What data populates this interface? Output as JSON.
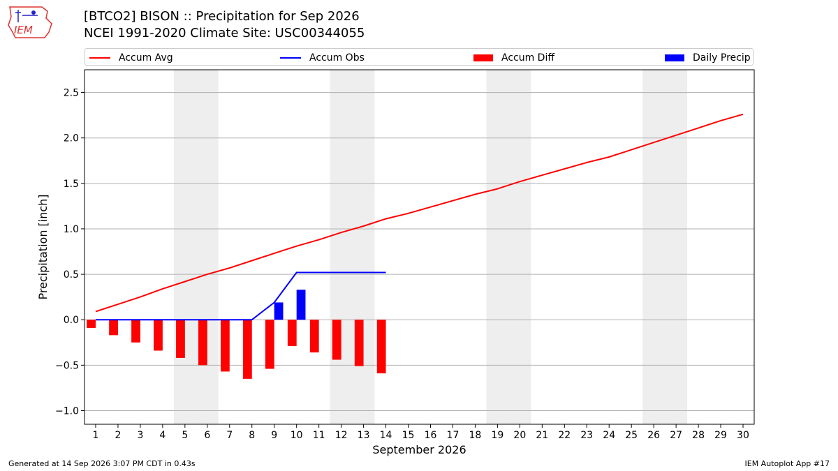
{
  "header": {
    "title_line1": "[BTCO2] BISON :: Precipitation for Sep 2026",
    "title_line2": "NCEI 1991-2020 Climate Site: USC00344055",
    "logo_text": "IEM"
  },
  "legend": {
    "items": [
      {
        "label": "Accum Avg",
        "color": "#ff0000",
        "kind": "line"
      },
      {
        "label": "Accum Obs",
        "color": "#0000ff",
        "kind": "line"
      },
      {
        "label": "Accum Diff",
        "color": "#ff0000",
        "kind": "box"
      },
      {
        "label": "Daily Precip",
        "color": "#0000ff",
        "kind": "box"
      }
    ]
  },
  "footer": {
    "generated": "Generated at 14 Sep 2026 3:07 PM CDT in 0.43s",
    "app": "IEM Autoplot App #17"
  },
  "chart_data": {
    "type": "bar",
    "xlabel": "September 2026",
    "ylabel": "Precipitation [inch]",
    "xlim": [
      0.5,
      30.5
    ],
    "ylim": [
      -1.15,
      2.75
    ],
    "yticks": [
      -1.0,
      -0.5,
      0.0,
      0.5,
      1.0,
      1.5,
      2.0,
      2.5
    ],
    "ytick_labels": [
      "−1.0",
      "−0.5",
      "0.0",
      "0.5",
      "1.0",
      "1.5",
      "2.0",
      "2.5"
    ],
    "xticks": [
      1,
      2,
      3,
      4,
      5,
      6,
      7,
      8,
      9,
      10,
      11,
      12,
      13,
      14,
      15,
      16,
      17,
      18,
      19,
      20,
      21,
      22,
      23,
      24,
      25,
      26,
      27,
      28,
      29,
      30
    ],
    "grid": "horizontal",
    "weekend_shading": [
      [
        4.5,
        6.5
      ],
      [
        11.5,
        13.5
      ],
      [
        18.5,
        20.5
      ],
      [
        25.5,
        27.5
      ]
    ],
    "colors": {
      "avg": "#ff0000",
      "obs": "#0000ff",
      "diff": "#ff0000",
      "daily": "#0000ff",
      "shade": "#eeeeee",
      "grid": "#b0b0b0"
    },
    "series": [
      {
        "name": "Accum Avg",
        "kind": "line",
        "x": [
          1,
          2,
          3,
          4,
          5,
          6,
          7,
          8,
          9,
          10,
          11,
          12,
          13,
          14,
          15,
          16,
          17,
          18,
          19,
          20,
          21,
          22,
          23,
          24,
          25,
          26,
          27,
          28,
          29,
          30
        ],
        "values": [
          0.09,
          0.17,
          0.25,
          0.34,
          0.42,
          0.5,
          0.57,
          0.65,
          0.73,
          0.81,
          0.88,
          0.96,
          1.03,
          1.11,
          1.17,
          1.24,
          1.31,
          1.38,
          1.44,
          1.52,
          1.59,
          1.66,
          1.73,
          1.79,
          1.87,
          1.95,
          2.03,
          2.11,
          2.19,
          2.26
        ]
      },
      {
        "name": "Accum Obs",
        "kind": "line",
        "x": [
          1,
          2,
          3,
          4,
          5,
          6,
          7,
          8,
          9,
          10,
          11,
          12,
          13,
          14
        ],
        "values": [
          0.0,
          0.0,
          0.0,
          0.0,
          0.0,
          0.0,
          0.0,
          0.0,
          0.19,
          0.52,
          0.52,
          0.52,
          0.52,
          0.52
        ]
      },
      {
        "name": "Accum Diff",
        "kind": "bar",
        "offset": -0.2,
        "x": [
          1,
          2,
          3,
          4,
          5,
          6,
          7,
          8,
          9,
          10,
          11,
          12,
          13,
          14
        ],
        "values": [
          -0.09,
          -0.17,
          -0.25,
          -0.34,
          -0.42,
          -0.5,
          -0.57,
          -0.65,
          -0.54,
          -0.29,
          -0.36,
          -0.44,
          -0.51,
          -0.59
        ]
      },
      {
        "name": "Daily Precip",
        "kind": "bar",
        "offset": 0.2,
        "x": [
          9,
          10
        ],
        "values": [
          0.19,
          0.33
        ]
      }
    ]
  }
}
